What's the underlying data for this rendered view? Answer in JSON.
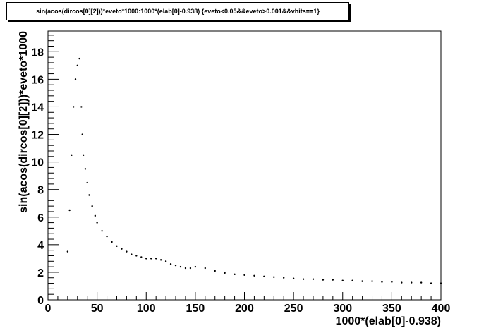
{
  "chart_data": {
    "type": "scatter",
    "title": "sin(acos(dircos[0][2]))*eveto*1000:1000*(elab[0]-0.938) {eveto<0.05&&eveto>0.001&&vhits==1}",
    "xlabel": "1000*(elab[0]-0.938)",
    "ylabel": "sin(acos(dircos[0][2]))*eveto*1000",
    "xlim": [
      0,
      400
    ],
    "ylim": [
      0,
      19.5
    ],
    "x_ticks": [
      "0",
      "50",
      "100",
      "150",
      "200",
      "250",
      "300",
      "350",
      "400"
    ],
    "y_ticks": [
      "0",
      "2",
      "4",
      "6",
      "8",
      "10",
      "12",
      "14",
      "16",
      "18"
    ],
    "grid": false,
    "marker_color": "#000000",
    "series": [
      {
        "x": [
          20,
          22,
          24,
          26,
          28,
          30,
          32,
          34,
          35,
          36,
          38,
          40,
          42,
          45,
          48,
          50,
          55,
          60,
          65,
          70,
          75,
          80,
          85,
          90,
          95,
          100,
          105,
          110,
          115,
          120,
          125,
          130,
          135,
          140,
          145,
          150,
          160,
          170,
          180,
          190,
          200,
          210,
          220,
          230,
          240,
          250,
          260,
          270,
          280,
          290,
          300,
          310,
          320,
          330,
          340,
          350,
          360,
          370,
          380,
          390,
          400
        ],
        "y": [
          3.5,
          6.5,
          10.5,
          14.0,
          16.0,
          17.0,
          17.5,
          14.0,
          12.0,
          10.5,
          9.5,
          8.5,
          7.6,
          6.8,
          6.1,
          5.6,
          5.0,
          4.6,
          4.2,
          3.9,
          3.7,
          3.5,
          3.3,
          3.2,
          3.1,
          3.0,
          3.0,
          3.0,
          2.9,
          2.8,
          2.6,
          2.5,
          2.4,
          2.3,
          2.3,
          2.4,
          2.3,
          2.1,
          1.95,
          1.85,
          1.8,
          1.75,
          1.7,
          1.65,
          1.6,
          1.55,
          1.5,
          1.5,
          1.45,
          1.45,
          1.4,
          1.4,
          1.35,
          1.35,
          1.3,
          1.3,
          1.25,
          1.25,
          1.25,
          1.2,
          1.2
        ]
      }
    ]
  }
}
